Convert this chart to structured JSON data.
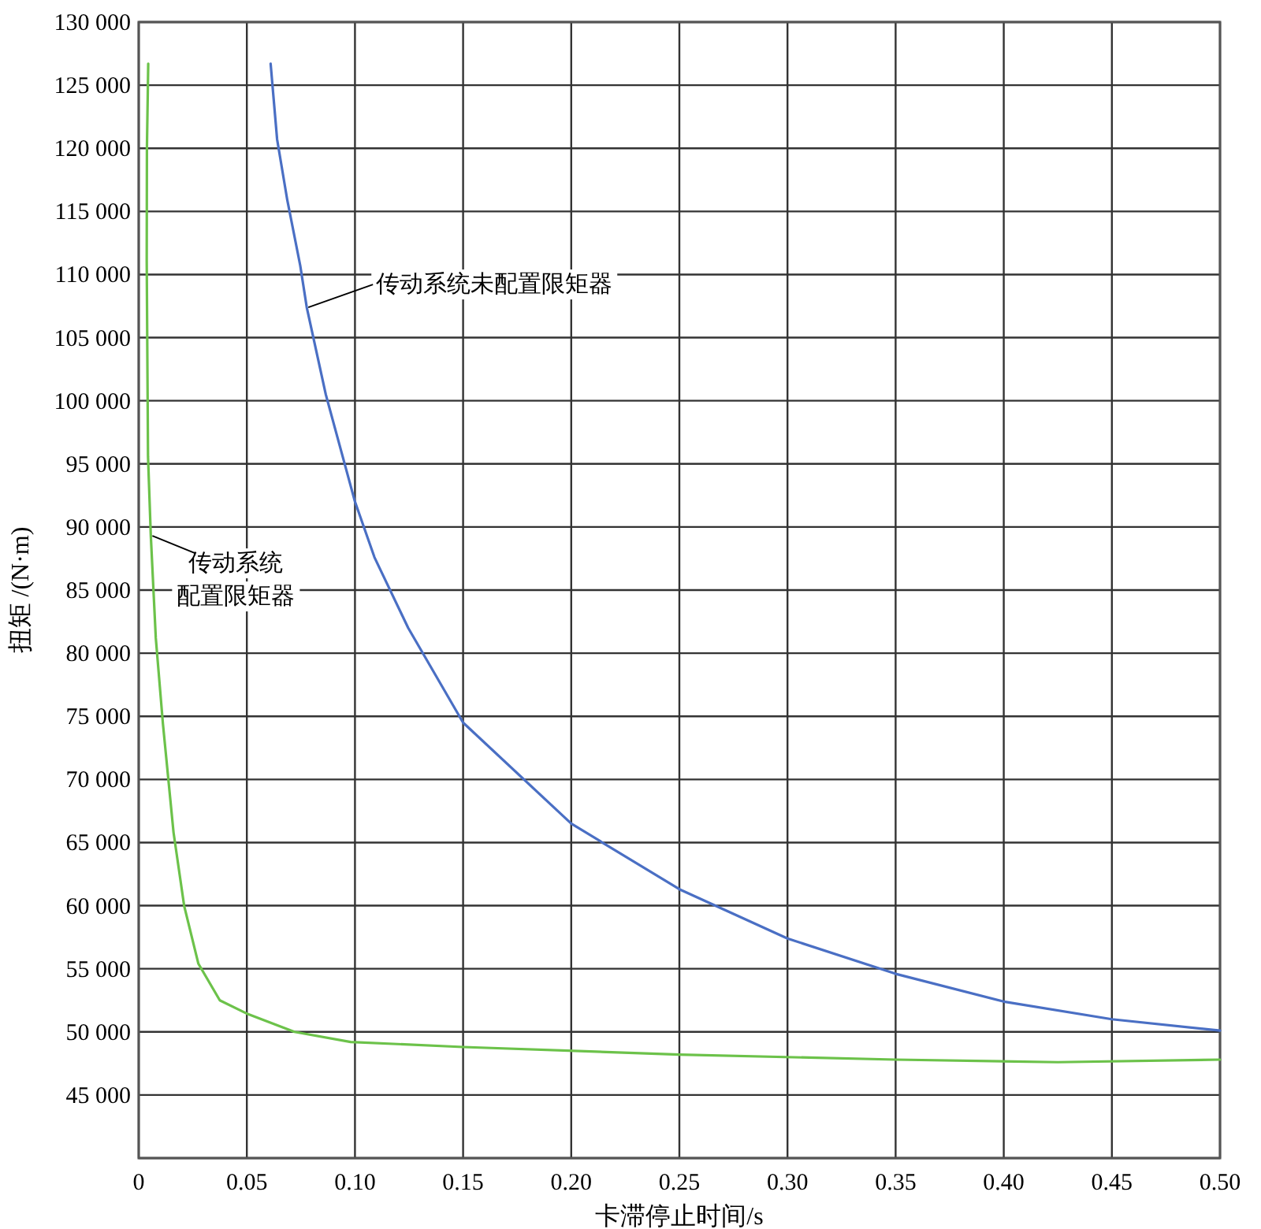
{
  "chart_data": {
    "type": "line",
    "xlabel": "卡滞停止时间/s",
    "ylabel": "扭矩 /(N·m)",
    "xlim": [
      0,
      0.5
    ],
    "ylim": [
      40000,
      130000
    ],
    "xticks": [
      0,
      0.05,
      {
        "value": 0.1,
        "label": "0.10"
      },
      0.15,
      {
        "value": 0.2,
        "label": "0.20"
      },
      0.25,
      {
        "value": 0.3,
        "label": "0.30"
      },
      0.35,
      {
        "value": 0.4,
        "label": "0.40"
      },
      0.45,
      {
        "value": 0.5,
        "label": "0.50"
      }
    ],
    "yticks": [
      {
        "value": 40000,
        "label": null
      },
      {
        "value": 45000,
        "label": "45 000"
      },
      {
        "value": 50000,
        "label": "50 000"
      },
      {
        "value": 55000,
        "label": "55 000"
      },
      {
        "value": 60000,
        "label": "60 000"
      },
      {
        "value": 65000,
        "label": "65 000"
      },
      {
        "value": 70000,
        "label": "70 000"
      },
      {
        "value": 75000,
        "label": "75 000"
      },
      {
        "value": 80000,
        "label": "80 000"
      },
      {
        "value": 85000,
        "label": "85 000"
      },
      {
        "value": 90000,
        "label": "90 000"
      },
      {
        "value": 95000,
        "label": "95 000"
      },
      {
        "value": 100000,
        "label": "100 000"
      },
      {
        "value": 105000,
        "label": "105 000"
      },
      {
        "value": 110000,
        "label": "110 000"
      },
      {
        "value": 115000,
        "label": "115 000"
      },
      {
        "value": 120000,
        "label": "120 000"
      },
      {
        "value": 125000,
        "label": "125 000"
      },
      {
        "value": 130000,
        "label": "130 000"
      }
    ],
    "grid": true,
    "marker": "none",
    "line_style": "solid",
    "series": [
      {
        "color": "#4a6fc4",
        "x": [
          0.061,
          0.064,
          0.0687,
          0.0747,
          0.0777,
          0.0865,
          0.1,
          0.109,
          0.1246,
          0.15,
          0.2,
          0.25,
          0.3,
          0.35,
          0.4,
          0.45,
          0.5
        ],
        "values": [
          126700,
          120700,
          115900,
          110700,
          107400,
          100500,
          92000,
          87600,
          82000,
          74500,
          66500,
          61300,
          57400,
          54600,
          52400,
          51000,
          50100
        ]
      },
      {
        "color": "#6cc24a",
        "x": [
          0.0044,
          0.0038,
          0.0037,
          0.0043,
          0.0056,
          0.0079,
          0.0112,
          0.0161,
          0.021,
          0.0276,
          0.0375,
          0.0506,
          0.072,
          0.098,
          0.15,
          0.25,
          0.35,
          0.425,
          0.5
        ],
        "values": [
          126700,
          120000,
          111100,
          95600,
          89300,
          81200,
          74400,
          65800,
          60000,
          55400,
          52500,
          51400,
          50000,
          49200,
          48800,
          48200,
          47800,
          47600,
          47800
        ]
      }
    ],
    "annotations": [
      {
        "text": "传动系统未配置限矩器",
        "x": 0.0777,
        "y": 107400
      },
      {
        "text": "传动系统",
        "x": 0.0056,
        "y": 89300
      },
      "配置限矩器"
    ]
  }
}
